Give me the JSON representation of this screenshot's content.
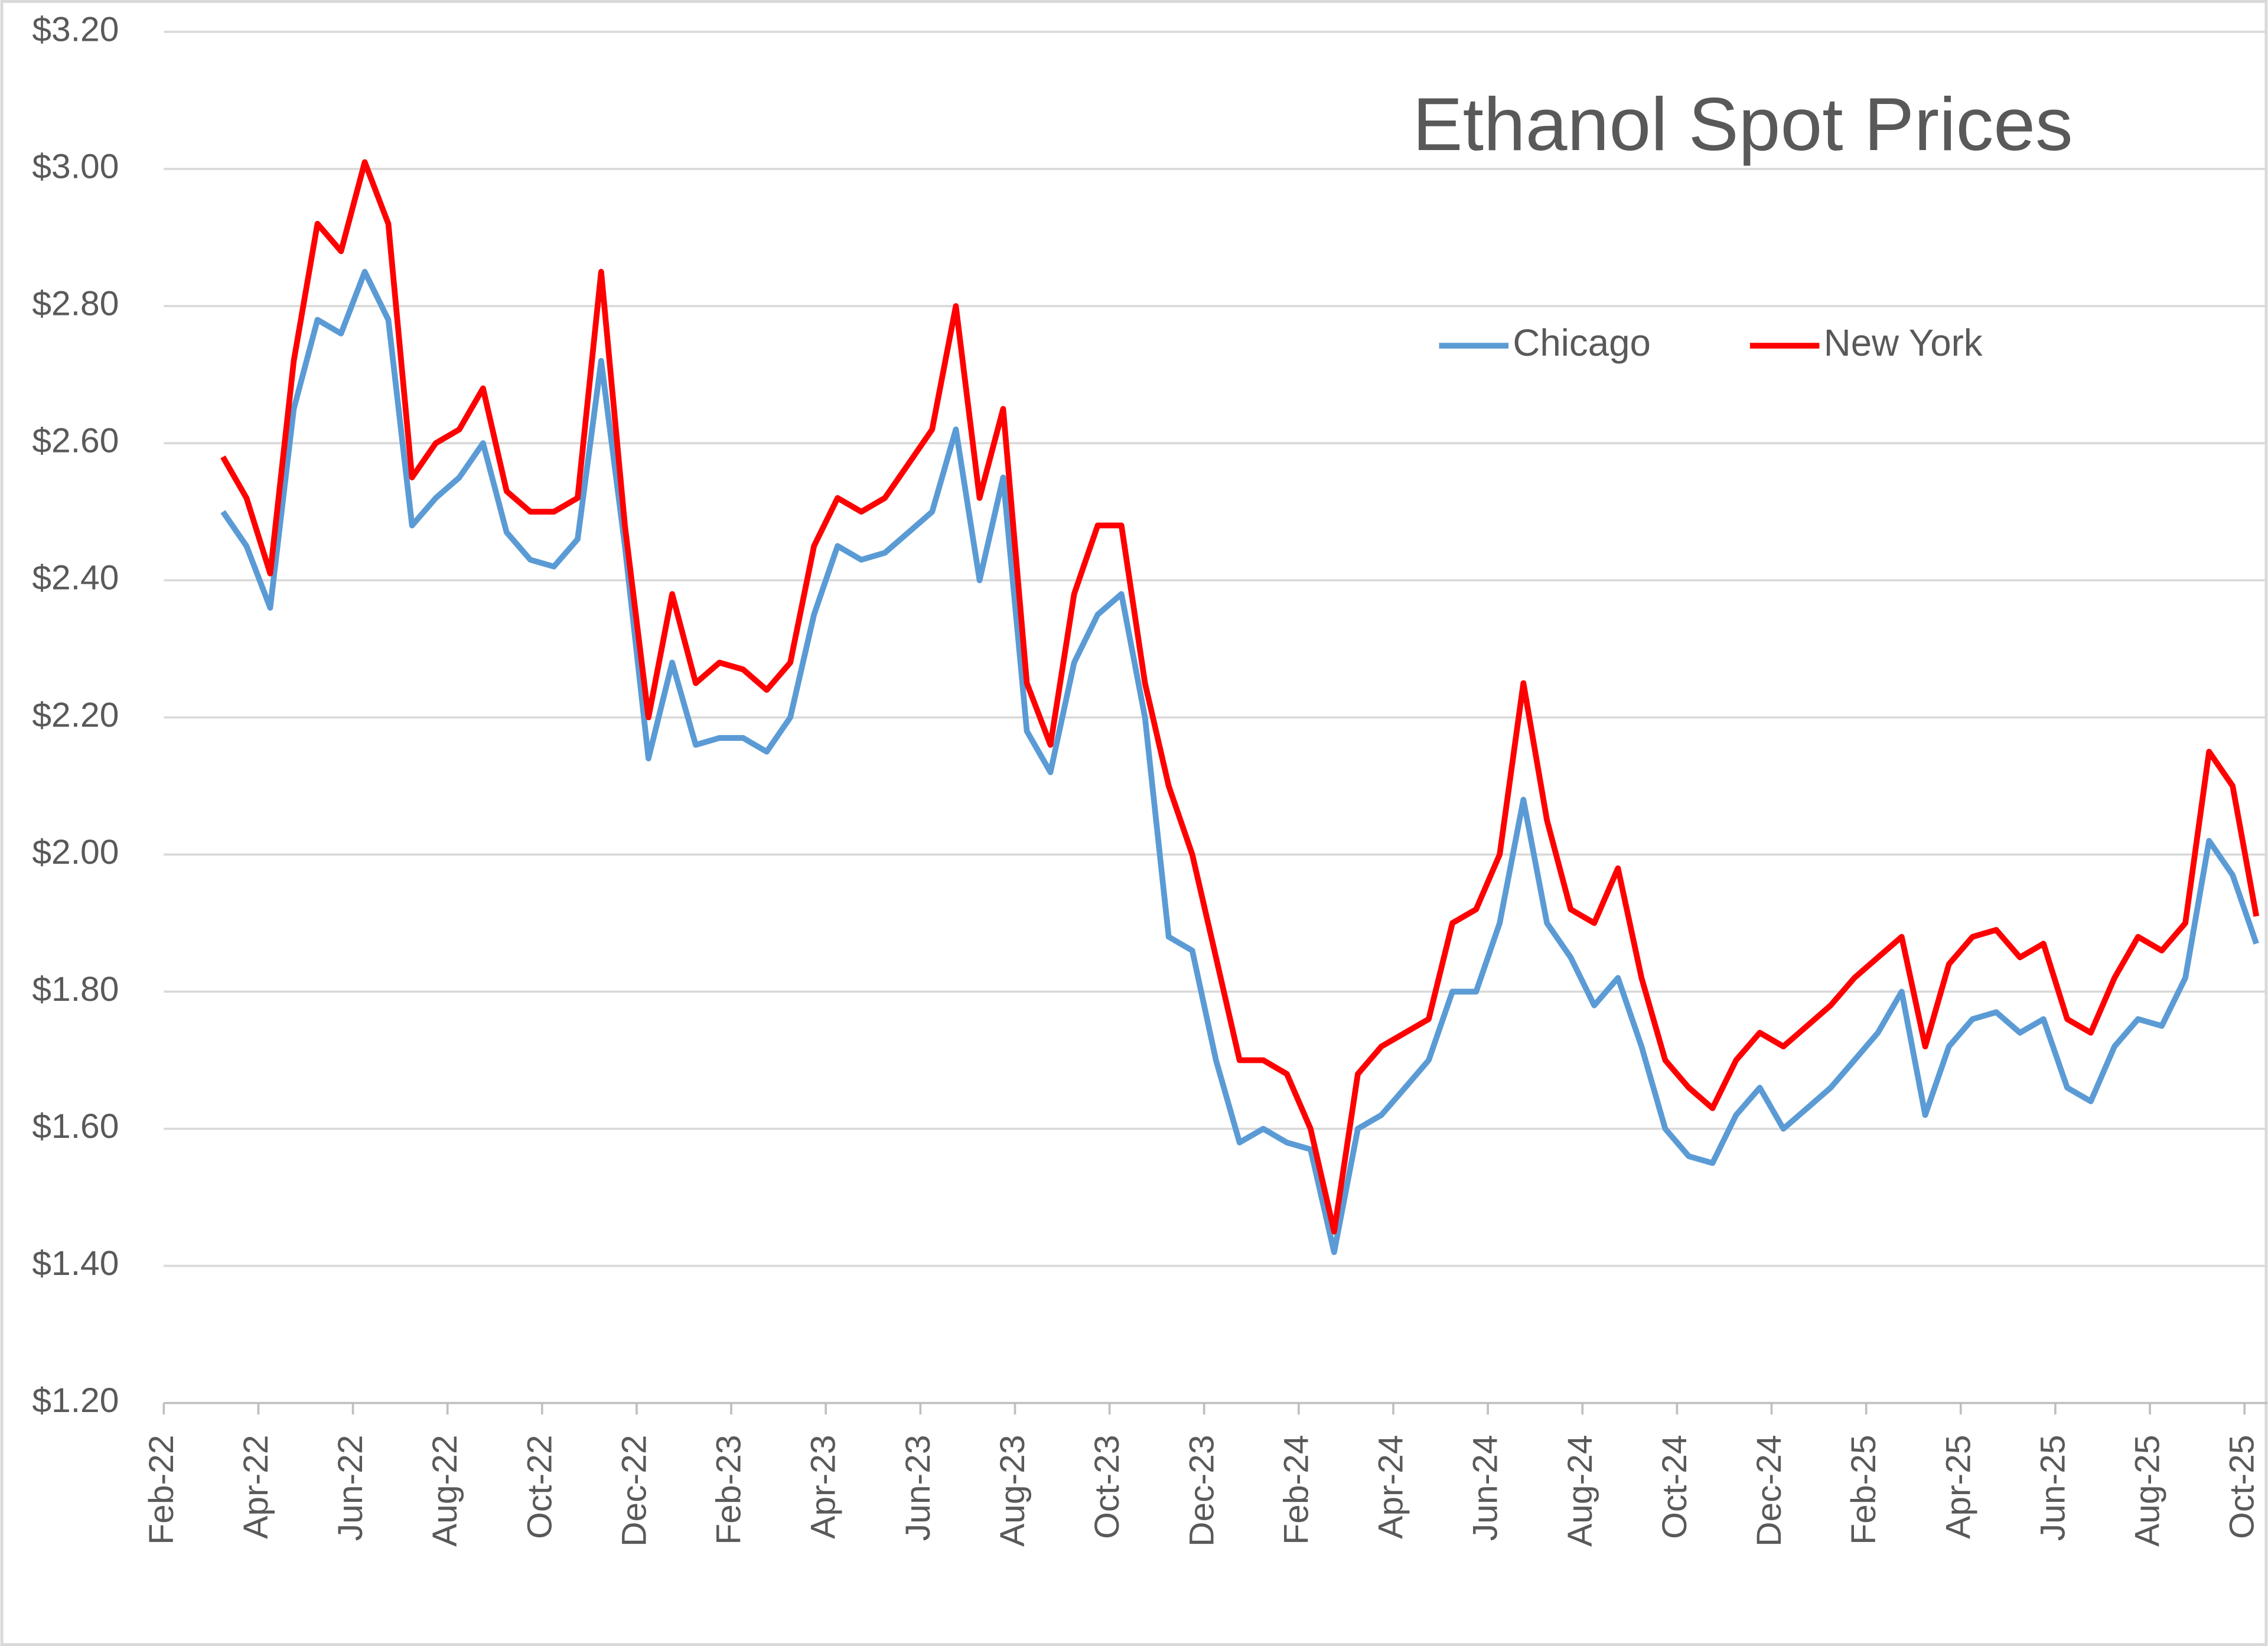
{
  "chart_data": {
    "type": "line",
    "title": "Ethanol Spot Prices",
    "x": [
      "Mar-22",
      "Mar-22",
      "Apr-22",
      "Apr-22",
      "May-22",
      "May-22",
      "Jun-22",
      "Jun-22",
      "Jul-22",
      "Jul-22",
      "Aug-22",
      "Aug-22",
      "Sep-22",
      "Sep-22",
      "Oct-22",
      "Oct-22",
      "Nov-22",
      "Nov-22",
      "Dec-22",
      "Dec-22",
      "Jan-23",
      "Jan-23",
      "Feb-23",
      "Feb-23",
      "Mar-23",
      "Mar-23",
      "Apr-23",
      "Apr-23",
      "May-23",
      "May-23",
      "Jun-23",
      "Jun-23",
      "Jul-23",
      "Jul-23",
      "Aug-23",
      "Aug-23",
      "Sep-23",
      "Sep-23",
      "Oct-23",
      "Oct-23",
      "Nov-23",
      "Nov-23",
      "Dec-23",
      "Dec-23",
      "Jan-24",
      "Jan-24",
      "Feb-24",
      "Feb-24",
      "Mar-24",
      "Mar-24",
      "Apr-24",
      "Apr-24",
      "May-24",
      "May-24",
      "Jun-24",
      "Jun-24",
      "Jul-24",
      "Jul-24",
      "Aug-24",
      "Aug-24",
      "Sep-24",
      "Sep-24",
      "Oct-24",
      "Oct-24",
      "Nov-24",
      "Nov-24",
      "Dec-24",
      "Dec-24",
      "Jan-25",
      "Jan-25",
      "Feb-25",
      "Feb-25",
      "Mar-25",
      "Mar-25",
      "Apr-25",
      "Apr-25",
      "May-25",
      "May-25",
      "Jun-25",
      "Jun-25",
      "Jul-25",
      "Jul-25",
      "Aug-25",
      "Aug-25",
      "Sep-25",
      "Sep-25",
      "Oct-25"
    ],
    "series": [
      {
        "name": "Chicago",
        "color": "#5b9bd5",
        "values": [
          2.5,
          2.45,
          2.36,
          2.65,
          2.78,
          2.76,
          2.85,
          2.78,
          2.48,
          2.52,
          2.55,
          2.6,
          2.47,
          2.43,
          2.42,
          2.46,
          2.72,
          2.45,
          2.14,
          2.28,
          2.16,
          2.17,
          2.17,
          2.15,
          2.2,
          2.35,
          2.45,
          2.43,
          2.44,
          2.47,
          2.5,
          2.62,
          2.4,
          2.55,
          2.18,
          2.12,
          2.28,
          2.35,
          2.38,
          2.2,
          1.88,
          1.86,
          1.7,
          1.58,
          1.6,
          1.58,
          1.57,
          1.42,
          1.6,
          1.62,
          1.66,
          1.7,
          1.8,
          1.8,
          1.9,
          2.08,
          1.9,
          1.85,
          1.78,
          1.82,
          1.72,
          1.6,
          1.56,
          1.55,
          1.62,
          1.66,
          1.6,
          1.63,
          1.66,
          1.7,
          1.74,
          1.8,
          1.62,
          1.72,
          1.76,
          1.77,
          1.74,
          1.76,
          1.66,
          1.64,
          1.72,
          1.76,
          1.75,
          1.82,
          2.02,
          1.97,
          1.87
        ]
      },
      {
        "name": "New York",
        "color": "#ff0000",
        "values": [
          2.58,
          2.52,
          2.41,
          2.72,
          2.92,
          2.88,
          3.01,
          2.92,
          2.55,
          2.6,
          2.62,
          2.68,
          2.53,
          2.5,
          2.5,
          2.52,
          2.85,
          2.48,
          2.2,
          2.38,
          2.25,
          2.28,
          2.27,
          2.24,
          2.28,
          2.45,
          2.52,
          2.5,
          2.52,
          2.57,
          2.62,
          2.8,
          2.52,
          2.65,
          2.25,
          2.16,
          2.38,
          2.48,
          2.48,
          2.25,
          2.1,
          2.0,
          1.85,
          1.7,
          1.7,
          1.68,
          1.6,
          1.45,
          1.68,
          1.72,
          1.74,
          1.76,
          1.9,
          1.92,
          2.0,
          2.25,
          2.05,
          1.92,
          1.9,
          1.98,
          1.82,
          1.7,
          1.66,
          1.63,
          1.7,
          1.74,
          1.72,
          1.75,
          1.78,
          1.82,
          1.85,
          1.88,
          1.72,
          1.84,
          1.88,
          1.89,
          1.85,
          1.87,
          1.76,
          1.74,
          1.82,
          1.88,
          1.86,
          1.9,
          2.15,
          2.1,
          1.91
        ]
      }
    ],
    "xticks": [
      "Feb-22",
      "Apr-22",
      "Jun-22",
      "Aug-22",
      "Oct-22",
      "Dec-22",
      "Feb-23",
      "Apr-23",
      "Jun-23",
      "Aug-23",
      "Oct-23",
      "Dec-23",
      "Feb-24",
      "Apr-24",
      "Jun-24",
      "Aug-24",
      "Oct-24",
      "Dec-24",
      "Feb-25",
      "Apr-25",
      "Jun-25",
      "Aug-25",
      "Oct-25"
    ],
    "ylim": [
      1.2,
      3.2
    ],
    "yticks": [
      {
        "value": 1.2,
        "label": "$1.20"
      },
      {
        "value": 1.4,
        "label": "$1.40"
      },
      {
        "value": 1.6,
        "label": "$1.60"
      },
      {
        "value": 1.8,
        "label": "$1.80"
      },
      {
        "value": 2.0,
        "label": "$2.00"
      },
      {
        "value": 2.2,
        "label": "$2.20"
      },
      {
        "value": 2.4,
        "label": "$2.40"
      },
      {
        "value": 2.6,
        "label": "$2.60"
      },
      {
        "value": 2.8,
        "label": "$2.80"
      },
      {
        "value": 3.0,
        "label": "$3.00"
      },
      {
        "value": 3.2,
        "label": "$3.20"
      }
    ],
    "grid": true,
    "legend": "top-right"
  }
}
